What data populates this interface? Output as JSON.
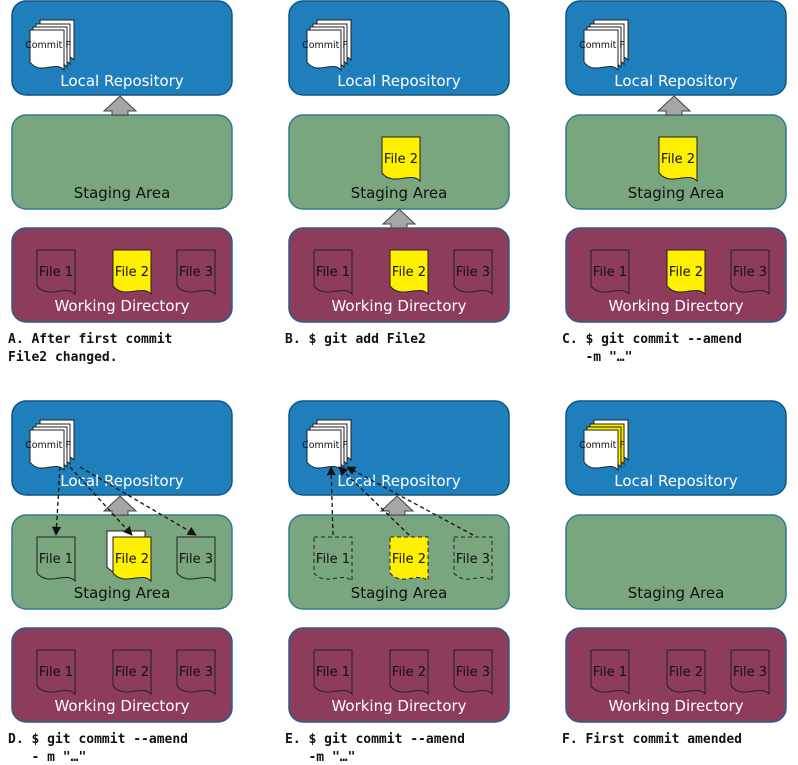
{
  "labels": {
    "local_repository": "Local Repository",
    "staging_area": "Staging Area",
    "working_directory": "Working Directory",
    "commit": "Commit F",
    "file1": "File 1",
    "file2": "File 2",
    "file3": "File 3"
  },
  "colors": {
    "repo_fill": "#1f7fbd",
    "repo_stroke": "#10557f",
    "staging_fill": "#7aa67f",
    "staging_stroke": "#2f7a90",
    "working_fill": "#8e3c5c",
    "working_stroke": "#2f5a8e",
    "highlight": "#ffef00",
    "paper": "#ffffff",
    "arrow_fill": "#a6a6a6"
  },
  "panels": [
    {
      "id": "a",
      "caption": [
        "A. After first commit",
        "File2 changed."
      ],
      "repo_commit_highlight": false,
      "staging_files": [],
      "working_files": [
        {
          "label": "File 1"
        },
        {
          "label": "File 2",
          "highlight": true
        },
        {
          "label": "File 3"
        }
      ],
      "arrow": "staging-to-repo",
      "dashed_arrows": null
    },
    {
      "id": "b",
      "caption": [
        "B. $ git add File2"
      ],
      "repo_commit_highlight": false,
      "staging_files": [
        {
          "label": "File 2",
          "highlight": true,
          "pos": "center"
        }
      ],
      "working_files": [
        {
          "label": "File 1"
        },
        {
          "label": "File 2",
          "highlight": true
        },
        {
          "label": "File 3"
        }
      ],
      "arrow": "working-to-staging",
      "dashed_arrows": null
    },
    {
      "id": "c",
      "caption": [
        "C. $ git commit --amend",
        "   -m \"…\""
      ],
      "repo_commit_highlight": false,
      "staging_files": [
        {
          "label": "File 2",
          "highlight": true,
          "pos": "center"
        }
      ],
      "working_files": [
        {
          "label": "File 1"
        },
        {
          "label": "File 2",
          "highlight": true
        },
        {
          "label": "File 3"
        }
      ],
      "arrow": "staging-to-repo",
      "dashed_arrows": null
    },
    {
      "id": "d",
      "caption": [
        "D. $ git commit --amend",
        "   - m \"…\""
      ],
      "repo_commit_highlight": false,
      "staging_files": [
        {
          "label": "File 1"
        },
        {
          "label": "File 2",
          "highlight": true,
          "stacked": true
        },
        {
          "label": "File 3"
        }
      ],
      "working_files": [
        {
          "label": "File 1"
        },
        {
          "label": "File 2"
        },
        {
          "label": "File 3"
        }
      ],
      "arrow": "staging-to-repo",
      "dashed_arrows": "repo-to-staging"
    },
    {
      "id": "e",
      "caption": [
        "E. $ git commit --amend",
        "   -m \"…\""
      ],
      "repo_commit_highlight": false,
      "staging_files": [
        {
          "label": "File 1",
          "dashed": true
        },
        {
          "label": "File 2",
          "highlight": true,
          "dashed": true
        },
        {
          "label": "File 3",
          "dashed": true
        }
      ],
      "working_files": [
        {
          "label": "File 1"
        },
        {
          "label": "File 2"
        },
        {
          "label": "File 3"
        }
      ],
      "arrow": "staging-to-repo",
      "dashed_arrows": "staging-to-repo"
    },
    {
      "id": "f",
      "caption": [
        "F. First commit amended"
      ],
      "repo_commit_highlight": true,
      "staging_files": [],
      "working_files": [
        {
          "label": "File 1"
        },
        {
          "label": "File 2"
        },
        {
          "label": "File 3"
        }
      ],
      "arrow": null,
      "dashed_arrows": null
    }
  ]
}
